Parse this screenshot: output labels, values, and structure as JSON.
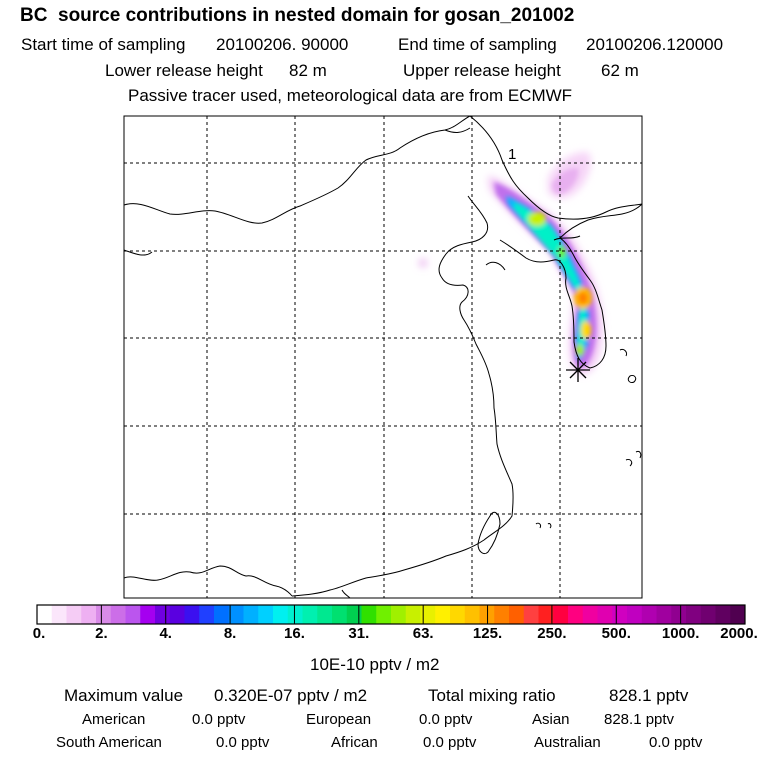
{
  "header": {
    "title": "BC  source contributions in nested domain for gosan_201002",
    "start_label": "Start time of sampling",
    "start_value": "20100206. 90000",
    "end_label": "End time of sampling",
    "end_value": "20100206.120000",
    "lower_label": "Lower release height",
    "lower_value": "82 m",
    "upper_label": "Upper release height",
    "upper_value": "62 m",
    "tracer_note": "Passive tracer used, meteorological data are from ECMWF"
  },
  "map": {
    "annotation": "1",
    "grid": true
  },
  "chart_data": {
    "type": "heatmap",
    "title": "BC  source contributions in nested domain for gosan_201002",
    "units": "10E-10 pptv / m2",
    "colorbar_ticks": [
      "0.",
      "2.",
      "4.",
      "8.",
      "16.",
      "31.",
      "63.",
      "125.",
      "250.",
      "500.",
      "1000.",
      "2000."
    ],
    "colorbar_colors": [
      "#ffffff",
      "#fbe6fb",
      "#f5ccf5",
      "#eeb0f2",
      "#d98be8",
      "#cc6ee8",
      "#bb55ee",
      "#a500f0",
      "#7000e0",
      "#5a00e0",
      "#3b10f0",
      "#2040ff",
      "#0070ff",
      "#0090ff",
      "#00b0ff",
      "#00d0ff",
      "#00f0f0",
      "#00f0d0",
      "#00f0b0",
      "#00e890",
      "#00e070",
      "#00d050",
      "#30e000",
      "#70f000",
      "#a0f000",
      "#c8f000",
      "#e8f000",
      "#fff000",
      "#ffd800",
      "#ffc000",
      "#ffa000",
      "#ff8000",
      "#ff6000",
      "#ff4040",
      "#ff2020",
      "#ff0040",
      "#ff0080",
      "#f000a0",
      "#e000b0",
      "#d000c0",
      "#c000c0",
      "#b000b0",
      "#a0009f",
      "#900090",
      "#800080",
      "#700070",
      "#600060",
      "#500050"
    ],
    "receptor": "gosan"
  },
  "stats": {
    "max_label": "Maximum value",
    "max_value": "0.320E-07 pptv / m2",
    "total_label": "Total mixing ratio",
    "total_value": "828.1 pptv",
    "regions": [
      {
        "name": "American",
        "value": "0.0 pptv"
      },
      {
        "name": "European",
        "value": "0.0 pptv"
      },
      {
        "name": "Asian",
        "value": "828.1 pptv"
      },
      {
        "name": "South American",
        "value": "0.0 pptv"
      },
      {
        "name": "African",
        "value": "0.0 pptv"
      },
      {
        "name": "Australian",
        "value": "0.0 pptv"
      }
    ]
  }
}
